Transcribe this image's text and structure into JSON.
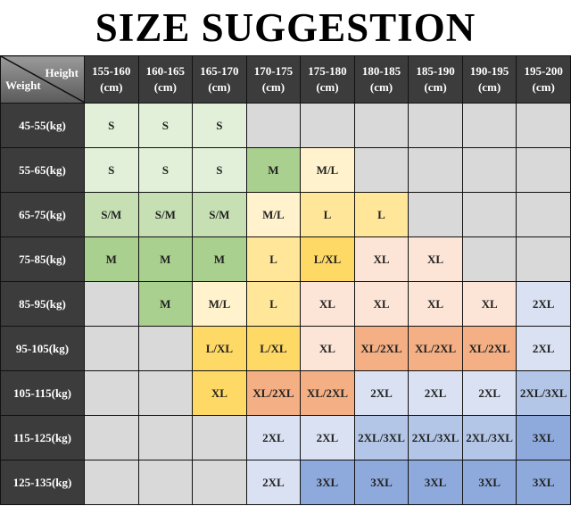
{
  "title": "SIZE SUGGESTION",
  "corner": {
    "height_label": "Height",
    "weight_label": "Weight"
  },
  "columns": [
    "155-160\n(cm)",
    "160-165\n(cm)",
    "165-170\n(cm)",
    "170-175\n(cm)",
    "175-180\n(cm)",
    "180-185\n(cm)",
    "185-190\n(cm)",
    "190-195\n(cm)",
    "195-200\n(cm)"
  ],
  "palette": {
    "n": "#d9d9d9",
    "g1": "#e2efd9",
    "g2": "#c6e0b4",
    "g3": "#a9d08e",
    "y1": "#fff2cc",
    "y2": "#ffe699",
    "y3": "#ffd966",
    "p1": "#fce4d6",
    "p2": "#f4b084",
    "b1": "#d9e1f2",
    "b2": "#b4c6e7",
    "b3": "#8ea9db"
  },
  "rows": [
    {
      "label": "45-55(kg)",
      "cells": [
        [
          "S",
          "g1"
        ],
        [
          "S",
          "g1"
        ],
        [
          "S",
          "g1"
        ],
        [
          "",
          "n"
        ],
        [
          "",
          "n"
        ],
        [
          "",
          "n"
        ],
        [
          "",
          "n"
        ],
        [
          "",
          "n"
        ],
        [
          "",
          "n"
        ]
      ]
    },
    {
      "label": "55-65(kg)",
      "cells": [
        [
          "S",
          "g1"
        ],
        [
          "S",
          "g1"
        ],
        [
          "S",
          "g1"
        ],
        [
          "M",
          "g3"
        ],
        [
          "M/L",
          "y1"
        ],
        [
          "",
          "n"
        ],
        [
          "",
          "n"
        ],
        [
          "",
          "n"
        ],
        [
          "",
          "n"
        ]
      ]
    },
    {
      "label": "65-75(kg)",
      "cells": [
        [
          "S/M",
          "g2"
        ],
        [
          "S/M",
          "g2"
        ],
        [
          "S/M",
          "g2"
        ],
        [
          "M/L",
          "y1"
        ],
        [
          "L",
          "y2"
        ],
        [
          "L",
          "y2"
        ],
        [
          "",
          "n"
        ],
        [
          "",
          "n"
        ],
        [
          "",
          "n"
        ]
      ]
    },
    {
      "label": "75-85(kg)",
      "cells": [
        [
          "M",
          "g3"
        ],
        [
          "M",
          "g3"
        ],
        [
          "M",
          "g3"
        ],
        [
          "L",
          "y2"
        ],
        [
          "L/XL",
          "y3"
        ],
        [
          "XL",
          "p1"
        ],
        [
          "XL",
          "p1"
        ],
        [
          "",
          "n"
        ],
        [
          "",
          "n"
        ]
      ]
    },
    {
      "label": "85-95(kg)",
      "cells": [
        [
          "",
          "n"
        ],
        [
          "M",
          "g3"
        ],
        [
          "M/L",
          "y1"
        ],
        [
          "L",
          "y2"
        ],
        [
          "XL",
          "p1"
        ],
        [
          "XL",
          "p1"
        ],
        [
          "XL",
          "p1"
        ],
        [
          "XL",
          "p1"
        ],
        [
          "2XL",
          "b1"
        ]
      ]
    },
    {
      "label": "95-105(kg)",
      "cells": [
        [
          "",
          "n"
        ],
        [
          "",
          "n"
        ],
        [
          "L/XL",
          "y3"
        ],
        [
          "L/XL",
          "y3"
        ],
        [
          "XL",
          "p1"
        ],
        [
          "XL/2XL",
          "p2"
        ],
        [
          "XL/2XL",
          "p2"
        ],
        [
          "XL/2XL",
          "p2"
        ],
        [
          "2XL",
          "b1"
        ]
      ]
    },
    {
      "label": "105-115(kg)",
      "cells": [
        [
          "",
          "n"
        ],
        [
          "",
          "n"
        ],
        [
          "XL",
          "y3"
        ],
        [
          "XL/2XL",
          "p2"
        ],
        [
          "XL/2XL",
          "p2"
        ],
        [
          "2XL",
          "b1"
        ],
        [
          "2XL",
          "b1"
        ],
        [
          "2XL",
          "b1"
        ],
        [
          "2XL/3XL",
          "b2"
        ]
      ]
    },
    {
      "label": "115-125(kg)",
      "cells": [
        [
          "",
          "n"
        ],
        [
          "",
          "n"
        ],
        [
          "",
          "n"
        ],
        [
          "2XL",
          "b1"
        ],
        [
          "2XL",
          "b1"
        ],
        [
          "2XL/3XL",
          "b2"
        ],
        [
          "2XL/3XL",
          "b2"
        ],
        [
          "2XL/3XL",
          "b2"
        ],
        [
          "3XL",
          "b3"
        ]
      ]
    },
    {
      "label": "125-135(kg)",
      "cells": [
        [
          "",
          "n"
        ],
        [
          "",
          "n"
        ],
        [
          "",
          "n"
        ],
        [
          "2XL",
          "b1"
        ],
        [
          "3XL",
          "b3"
        ],
        [
          "3XL",
          "b3"
        ],
        [
          "3XL",
          "b3"
        ],
        [
          "3XL",
          "b3"
        ],
        [
          "3XL",
          "b3"
        ]
      ]
    }
  ]
}
